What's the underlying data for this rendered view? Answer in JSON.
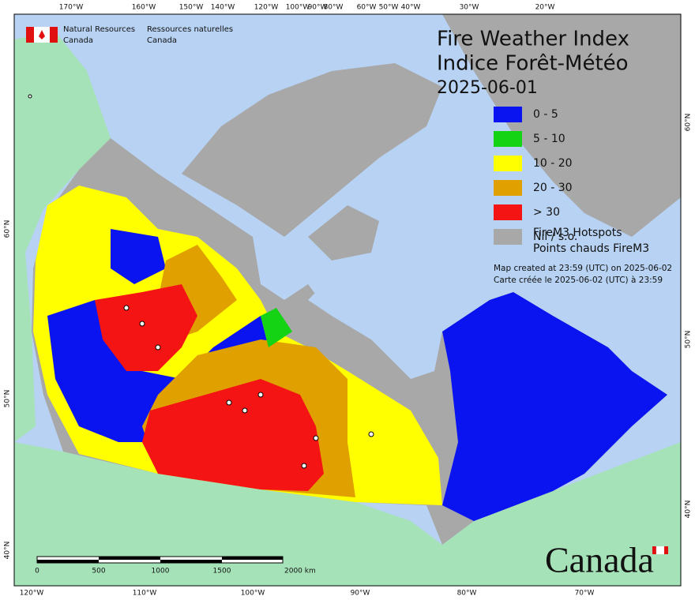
{
  "header": {
    "agency_en": [
      "Natural Resources",
      "Canada"
    ],
    "agency_fr": [
      "Ressources naturelles",
      "Canada"
    ]
  },
  "title": [
    "Fire Weather Index",
    "Indice Forêt-Météo"
  ],
  "date": "2025-06-01",
  "legend": {
    "items": [
      {
        "label": "0 - 5",
        "color": "#0a14f0"
      },
      {
        "label": "5 - 10",
        "color": "#14d214"
      },
      {
        "label": "10 - 20",
        "color": "#ffff00"
      },
      {
        "label": "20 - 30",
        "color": "#e0a000"
      },
      {
        "label": "> 30",
        "color": "#f51414"
      },
      {
        "label": "Nil / s.o.",
        "color": "#a8a8a8"
      }
    ],
    "hotspots": [
      "FireM3 Hotspots",
      "Points chauds FireM3"
    ]
  },
  "notes": [
    "Map created at 23:59 (UTC) on 2025-06-02",
    "Carte créée le 2025-06-02 (UTC) à 23:59"
  ],
  "graticule": {
    "top": [
      "170°W",
      "160°W",
      "150°W",
      "140°W",
      "120°W",
      "100°W",
      "90°W",
      "80°W",
      "60°W",
      "50°W",
      "40°W",
      "30°W",
      "20°W"
    ],
    "bottom": [
      "120°W",
      "110°W",
      "100°W",
      "90°W",
      "80°W",
      "70°W"
    ],
    "left": [
      "60°N",
      "50°N",
      "40°N"
    ],
    "right": [
      "60°N",
      "50°N",
      "40°N"
    ]
  },
  "scale_bar": [
    "0",
    "500",
    "1000",
    "1500",
    "2000 km"
  ],
  "wordmark": "Canada"
}
